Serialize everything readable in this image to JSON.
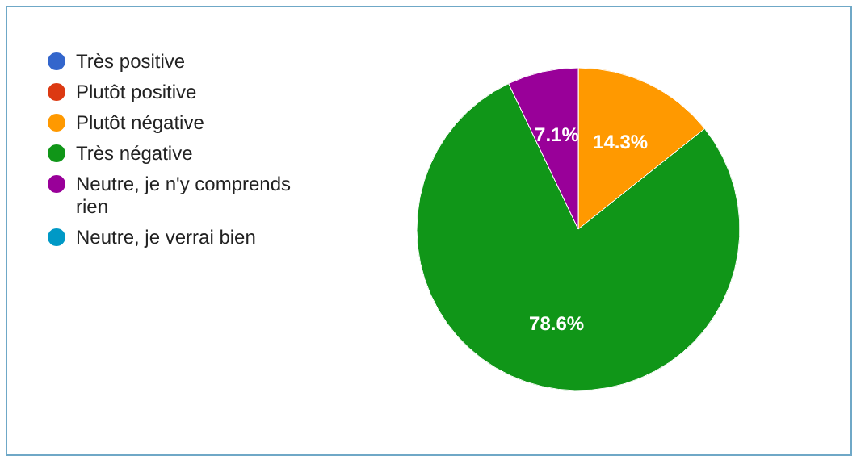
{
  "chart_data": {
    "type": "pie",
    "categories": [
      "Très positive",
      "Plutôt positive",
      "Plutôt négative",
      "Très négative",
      "Neutre, je n'y comprends rien",
      "Neutre, je verrai bien"
    ],
    "values": [
      0,
      0,
      14.3,
      78.6,
      7.1,
      0
    ],
    "colors": [
      "#3366cc",
      "#dc3912",
      "#ff9900",
      "#109618",
      "#990099",
      "#0099c6"
    ],
    "value_labels": [
      null,
      null,
      "14.3%",
      "78.6%",
      "7.1%",
      null
    ],
    "legend": "left"
  }
}
